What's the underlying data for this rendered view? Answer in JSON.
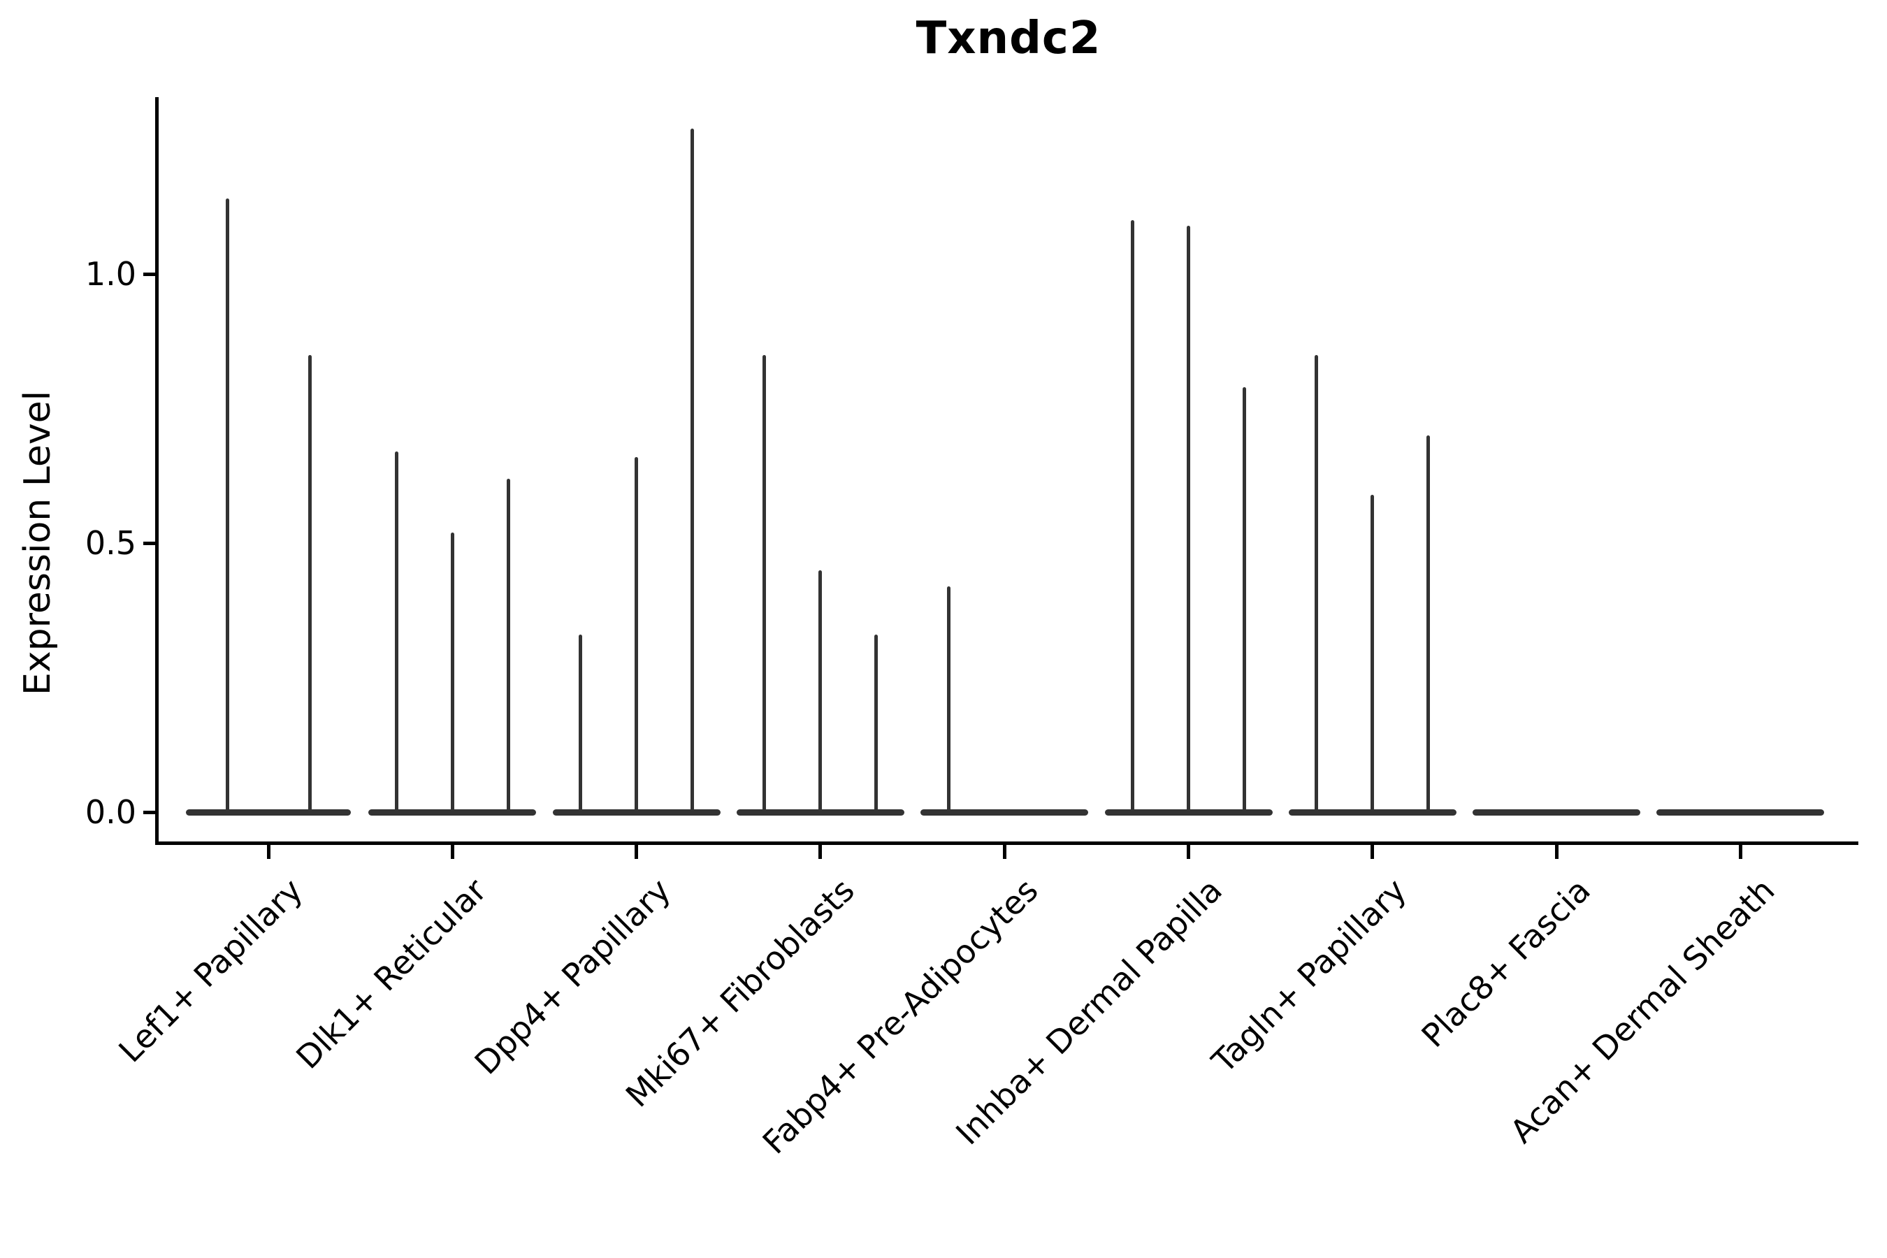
{
  "figure": {
    "title": "Txndc2"
  },
  "chart_data": {
    "type": "violin",
    "title": "Txndc2",
    "xlabel": "",
    "ylabel": "Expression Level",
    "ylim": [
      -0.06,
      1.33
    ],
    "yticks": [
      0,
      0.5,
      1
    ],
    "ytick_labels": [
      "0.0",
      "0.5",
      "1.0"
    ],
    "xtick_rotation_deg": 45,
    "grid": false,
    "legend_position": "none",
    "violin_color": "#333333",
    "axis_color": "#000000",
    "background_color": "#ffffff",
    "note": "Each group contains thin violins; violin_peaks = maximum expression level reached by each violin in the group (0 = flat violin at baseline).",
    "categories": [
      "Lef1+ Papillary",
      "Dlk1+ Reticular",
      "Dpp4+ Papillary",
      "Mki67+ Fibroblasts",
      "Fabp4+ Pre-Adipocytes",
      "Inhba+ Dermal Papilla",
      "Tagln+ Papillary",
      "Plac8+ Fascia",
      "Acan+ Dermal Sheath"
    ],
    "groups": [
      {
        "category": "Lef1+ Papillary",
        "violin_peaks": [
          1.14,
          0.85
        ]
      },
      {
        "category": "Dlk1+ Reticular",
        "violin_peaks": [
          0.67,
          0.52,
          0.62
        ]
      },
      {
        "category": "Dpp4+ Papillary",
        "violin_peaks": [
          0.33,
          0.66,
          1.27
        ]
      },
      {
        "category": "Mki67+ Fibroblasts",
        "violin_peaks": [
          0.85,
          0.45,
          0.33
        ]
      },
      {
        "category": "Fabp4+ Pre-Adipocytes",
        "violin_peaks": [
          0.42,
          0,
          0
        ]
      },
      {
        "category": "Inhba+ Dermal Papilla",
        "violin_peaks": [
          1.1,
          1.09,
          0.79
        ]
      },
      {
        "category": "Tagln+ Papillary",
        "violin_peaks": [
          0.85,
          0.59,
          0.7
        ]
      },
      {
        "category": "Plac8+ Fascia",
        "violin_peaks": [
          0,
          0,
          0
        ]
      },
      {
        "category": "Acan+ Dermal Sheath",
        "violin_peaks": [
          0,
          0,
          0
        ]
      }
    ]
  }
}
